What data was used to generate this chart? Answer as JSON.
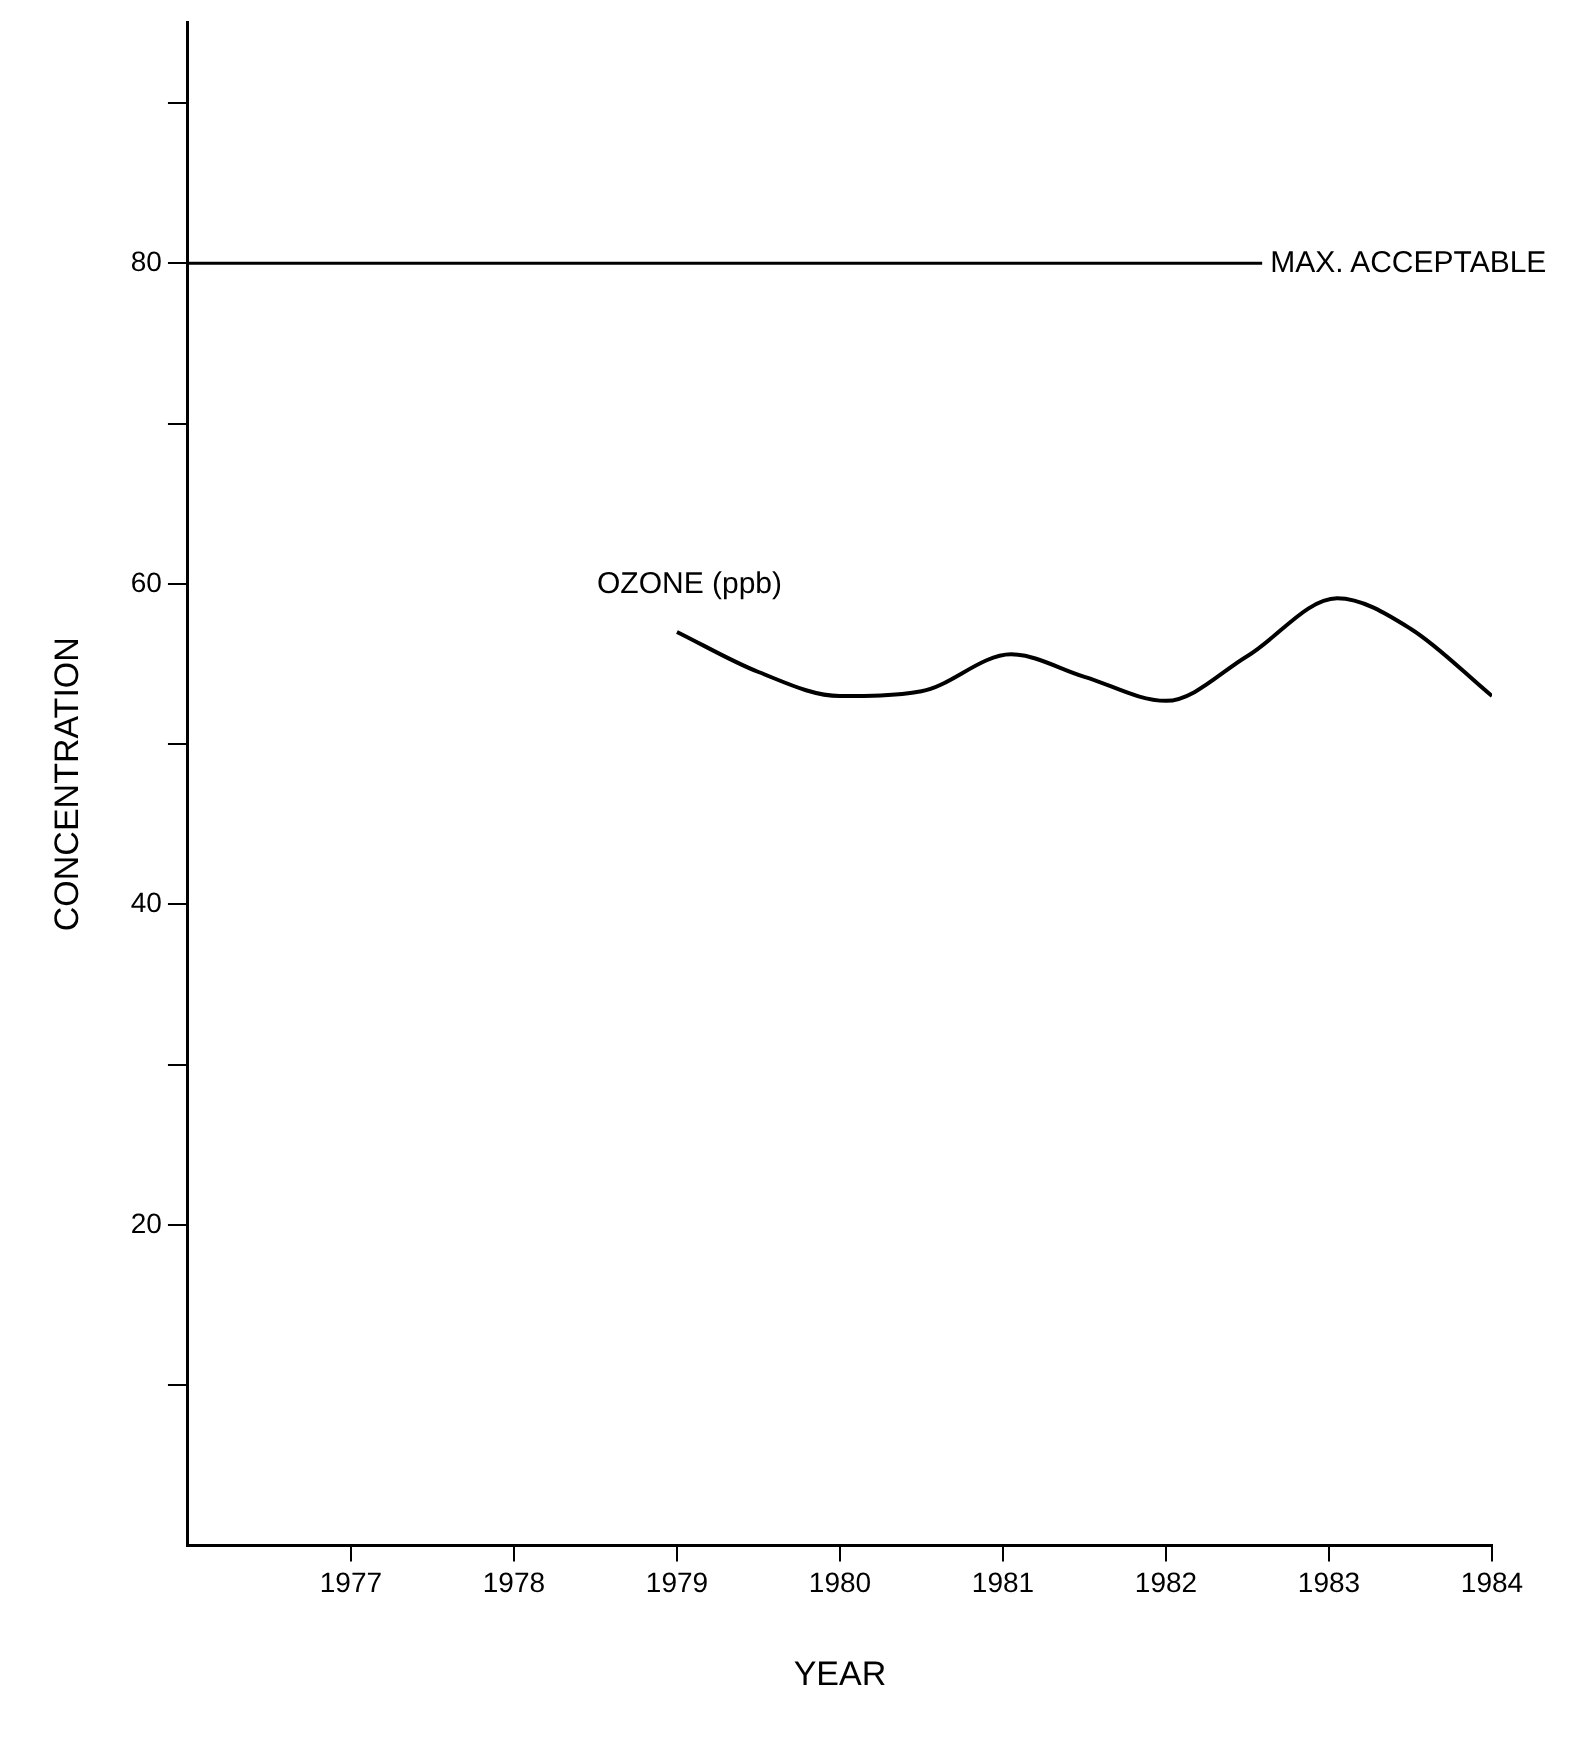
{
  "chart_data": {
    "type": "line",
    "xlabel": "YEAR",
    "ylabel": "CONCENTRATION",
    "x": [
      1979,
      1979.5,
      1980,
      1980.5,
      1981.05,
      1981.5,
      1982,
      1982.5,
      1983.05,
      1983.5,
      1984
    ],
    "series": [
      {
        "name": "OZONE (ppb)",
        "color": "#000000",
        "values": [
          57,
          54.5,
          53,
          53.3,
          55.6,
          54.2,
          52.7,
          55.5,
          59.1,
          57.2,
          53
        ]
      }
    ],
    "xlim": [
      1976,
      1984
    ],
    "xticks": [
      1977,
      1978,
      1979,
      1980,
      1981,
      1982,
      1983,
      1984
    ],
    "ylim": [
      0,
      95
    ],
    "yticks": [
      {
        "value": 10,
        "label": null
      },
      20,
      {
        "value": 30,
        "label": null
      },
      40,
      {
        "value": 50,
        "label": null
      },
      60,
      {
        "value": 70,
        "label": null
      },
      80,
      {
        "value": 90,
        "label": null
      }
    ],
    "ref_lines": [
      {
        "axis": "y",
        "value": 80,
        "label": "MAX. ACCEPTABLE",
        "color": "#000000"
      }
    ],
    "grid": false,
    "legend": false,
    "marker": "none",
    "line_style": "solid"
  }
}
